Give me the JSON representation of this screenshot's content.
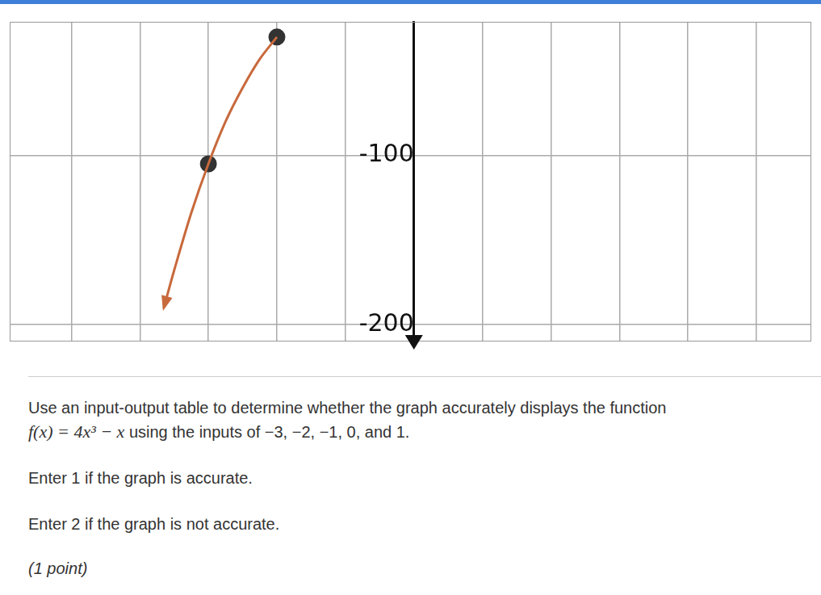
{
  "chart_data": {
    "type": "line",
    "xlim": [
      -5.9,
      5.8
    ],
    "xticks": [
      -5,
      -4,
      -3,
      -2,
      -1,
      0,
      1,
      2,
      3,
      4,
      5
    ],
    "ylim": [
      -210,
      -21
    ],
    "yticks": [
      -200,
      -100
    ],
    "grid": true,
    "tick_labels": "y",
    "series": [
      {
        "type": "line",
        "color": "#c8693c",
        "line_style": "solid",
        "x": [
          -3.65,
          -3.5,
          -3.25,
          -3,
          -2.75,
          -2.5,
          -2.25,
          -2
        ],
        "values": [
          -190,
          -168,
          -134,
          -105,
          -80,
          -60,
          -43,
          -30
        ]
      },
      {
        "type": "scatter",
        "color": "#333333",
        "marker": "circle",
        "x": [
          -3,
          -2
        ],
        "values": [
          -105,
          -30
        ]
      }
    ]
  },
  "question": {
    "text": "Use an input-output table to determine whether the graph accurately displays the function",
    "formula": "f(x) = 4x³ − x",
    "text_after_formula": " using the inputs of −3, −2, −1, 0, and 1.",
    "options": [
      "Enter 1 if the graph is accurate.",
      "Enter 2 if the graph is not accurate."
    ],
    "points": "(1 point)"
  }
}
